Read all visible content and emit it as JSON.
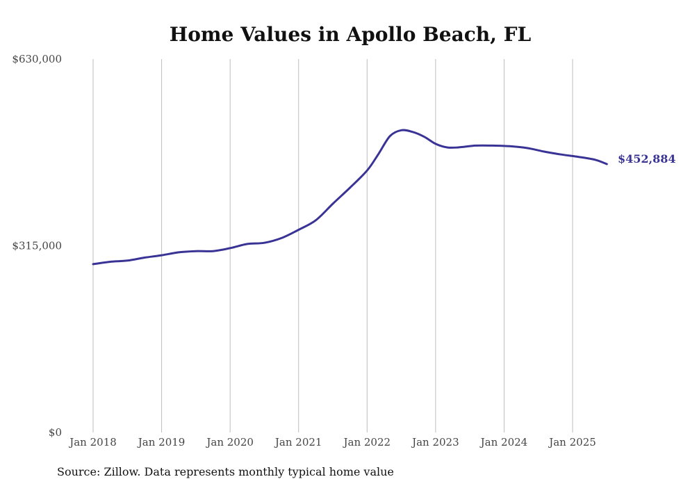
{
  "chart_data": {
    "type": "line",
    "title": "Home Values in Apollo Beach, FL",
    "source": "Source: Zillow. Data represents monthly typical home value",
    "ylim": [
      0,
      630000
    ],
    "yticks": [
      {
        "value": 0,
        "label": "$0"
      },
      {
        "value": 315000,
        "label": "$315,000"
      },
      {
        "value": 630000,
        "label": "$630,000"
      }
    ],
    "xticks": [
      {
        "value": "2018-01",
        "label": "Jan 2018"
      },
      {
        "value": "2019-01",
        "label": "Jan 2019"
      },
      {
        "value": "2020-01",
        "label": "Jan 2020"
      },
      {
        "value": "2021-01",
        "label": "Jan 2021"
      },
      {
        "value": "2022-01",
        "label": "Jan 2022"
      },
      {
        "value": "2023-01",
        "label": "Jan 2023"
      },
      {
        "value": "2024-01",
        "label": "Jan 2024"
      },
      {
        "value": "2025-01",
        "label": "Jan 2025"
      }
    ],
    "grid_vertical": true,
    "line_color": "#3a3396",
    "end_label": "$452,884",
    "series": [
      {
        "x": [
          "2018-01",
          "2018-04",
          "2018-07",
          "2018-10",
          "2019-01",
          "2019-04",
          "2019-07",
          "2019-10",
          "2020-01",
          "2020-04",
          "2020-07",
          "2020-10",
          "2021-01",
          "2021-04",
          "2021-07",
          "2021-10",
          "2022-01",
          "2022-03",
          "2022-05",
          "2022-07",
          "2022-09",
          "2022-11",
          "2023-01",
          "2023-03",
          "2023-05",
          "2023-08",
          "2023-11",
          "2024-02",
          "2024-05",
          "2024-08",
          "2024-11",
          "2025-02",
          "2025-05",
          "2025-07"
        ],
        "y": [
          284000,
          288000,
          290000,
          295000,
          299000,
          304000,
          306000,
          306000,
          311000,
          318000,
          320000,
          328000,
          342000,
          358000,
          386000,
          413000,
          442000,
          470000,
          500000,
          510000,
          507000,
          499000,
          487000,
          481000,
          481000,
          484000,
          484000,
          483000,
          480000,
          474000,
          469000,
          465000,
          460000,
          452884
        ]
      }
    ]
  }
}
